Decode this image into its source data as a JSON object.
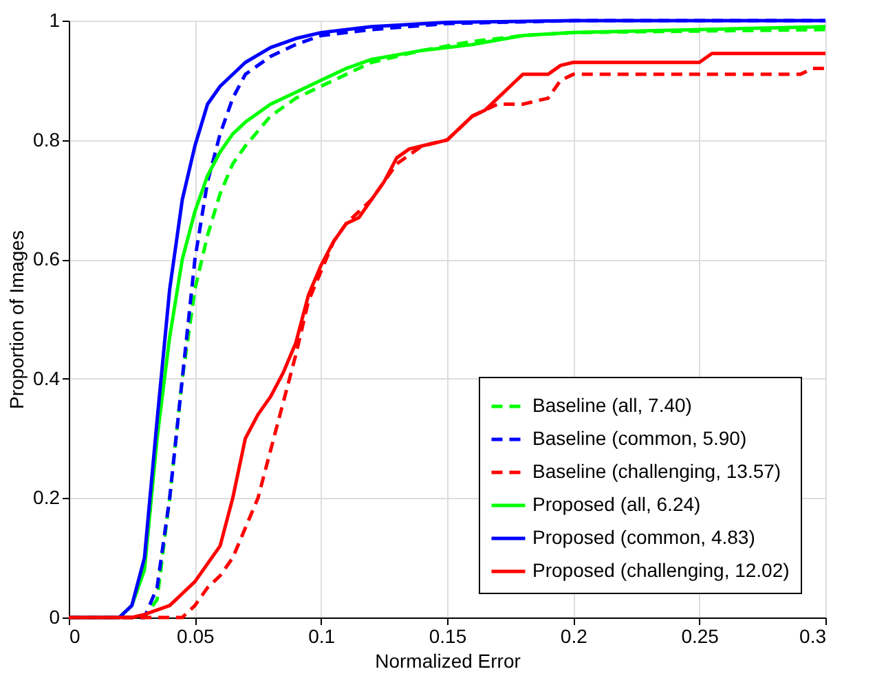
{
  "chart_data": {
    "type": "line",
    "xlabel": "Normalized Error",
    "ylabel": "Proportion of Images",
    "xlim": [
      0,
      0.3
    ],
    "ylim": [
      0,
      1
    ],
    "xticks": [
      0,
      0.05,
      0.1,
      0.15,
      0.2,
      0.25,
      0.3
    ],
    "yticks": [
      0,
      0.2,
      0.4,
      0.6,
      0.8,
      1
    ],
    "grid": true,
    "legend": "bottom right",
    "marker": "none",
    "series": [
      {
        "name": "Baseline (all, 7.40)",
        "color": "#00ff00",
        "line_style": "dashed",
        "x": [
          0,
          0.03,
          0.035,
          0.04,
          0.045,
          0.05,
          0.055,
          0.06,
          0.065,
          0.07,
          0.08,
          0.09,
          0.1,
          0.11,
          0.12,
          0.14,
          0.16,
          0.18,
          0.2,
          0.3
        ],
        "values": [
          0,
          0,
          0.03,
          0.2,
          0.4,
          0.55,
          0.64,
          0.71,
          0.76,
          0.79,
          0.84,
          0.87,
          0.89,
          0.91,
          0.93,
          0.95,
          0.965,
          0.975,
          0.98,
          0.985
        ]
      },
      {
        "name": "Baseline (common, 5.90)",
        "color": "#0000ff",
        "line_style": "dashed",
        "x": [
          0,
          0.03,
          0.035,
          0.04,
          0.045,
          0.05,
          0.055,
          0.06,
          0.065,
          0.07,
          0.08,
          0.09,
          0.1,
          0.12,
          0.15,
          0.2,
          0.3
        ],
        "values": [
          0,
          0,
          0.05,
          0.2,
          0.4,
          0.6,
          0.73,
          0.81,
          0.87,
          0.91,
          0.94,
          0.96,
          0.975,
          0.985,
          0.995,
          1,
          1
        ]
      },
      {
        "name": "Baseline (challenging, 13.57)",
        "color": "#ff0000",
        "line_style": "dashed",
        "x": [
          0,
          0.045,
          0.05,
          0.055,
          0.06,
          0.065,
          0.07,
          0.075,
          0.08,
          0.085,
          0.09,
          0.095,
          0.1,
          0.105,
          0.11,
          0.12,
          0.13,
          0.14,
          0.15,
          0.16,
          0.17,
          0.18,
          0.19,
          0.195,
          0.2,
          0.29,
          0.295,
          0.3
        ],
        "values": [
          0,
          0,
          0.02,
          0.05,
          0.07,
          0.1,
          0.15,
          0.2,
          0.28,
          0.36,
          0.44,
          0.53,
          0.58,
          0.63,
          0.66,
          0.7,
          0.76,
          0.79,
          0.8,
          0.84,
          0.86,
          0.86,
          0.87,
          0.9,
          0.91,
          0.91,
          0.92,
          0.92
        ]
      },
      {
        "name": "Proposed (all, 6.24)",
        "color": "#00ff00",
        "line_style": "solid",
        "x": [
          0,
          0.02,
          0.025,
          0.03,
          0.035,
          0.04,
          0.045,
          0.05,
          0.055,
          0.06,
          0.065,
          0.07,
          0.08,
          0.09,
          0.1,
          0.11,
          0.12,
          0.14,
          0.16,
          0.18,
          0.2,
          0.25,
          0.3
        ],
        "values": [
          0,
          0,
          0.02,
          0.08,
          0.3,
          0.47,
          0.6,
          0.68,
          0.74,
          0.78,
          0.81,
          0.83,
          0.86,
          0.88,
          0.9,
          0.92,
          0.935,
          0.95,
          0.96,
          0.975,
          0.98,
          0.985,
          0.99
        ]
      },
      {
        "name": "Proposed (common, 4.83)",
        "color": "#0000ff",
        "line_style": "solid",
        "x": [
          0,
          0.02,
          0.025,
          0.03,
          0.035,
          0.04,
          0.045,
          0.05,
          0.055,
          0.06,
          0.07,
          0.08,
          0.09,
          0.1,
          0.12,
          0.15,
          0.2,
          0.3
        ],
        "values": [
          0,
          0,
          0.02,
          0.1,
          0.33,
          0.55,
          0.7,
          0.79,
          0.86,
          0.89,
          0.93,
          0.955,
          0.97,
          0.98,
          0.99,
          0.997,
          1,
          1
        ]
      },
      {
        "name": "Proposed (challenging, 12.02)",
        "color": "#ff0000",
        "line_style": "solid",
        "x": [
          0,
          0.025,
          0.03,
          0.04,
          0.045,
          0.05,
          0.055,
          0.06,
          0.065,
          0.07,
          0.075,
          0.08,
          0.085,
          0.09,
          0.095,
          0.1,
          0.105,
          0.11,
          0.115,
          0.12,
          0.125,
          0.13,
          0.135,
          0.14,
          0.15,
          0.155,
          0.16,
          0.165,
          0.17,
          0.175,
          0.18,
          0.19,
          0.195,
          0.2,
          0.25,
          0.255,
          0.3
        ],
        "values": [
          0,
          0,
          0.005,
          0.02,
          0.04,
          0.06,
          0.09,
          0.12,
          0.2,
          0.3,
          0.34,
          0.37,
          0.41,
          0.46,
          0.54,
          0.59,
          0.63,
          0.66,
          0.67,
          0.7,
          0.73,
          0.77,
          0.785,
          0.79,
          0.8,
          0.82,
          0.84,
          0.85,
          0.87,
          0.89,
          0.91,
          0.91,
          0.925,
          0.93,
          0.93,
          0.945,
          0.945
        ]
      }
    ]
  }
}
